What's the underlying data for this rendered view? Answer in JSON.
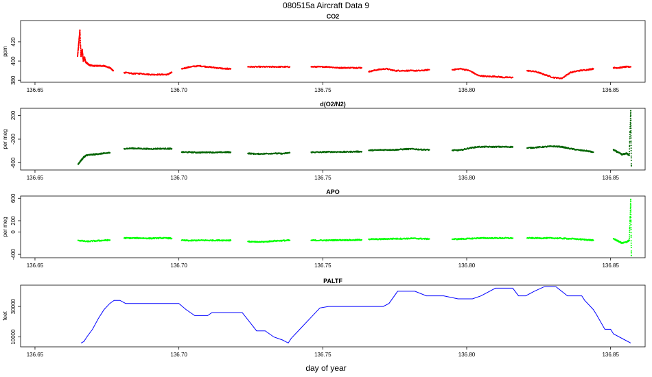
{
  "figure": {
    "title": "080515a    Aircraft Data 9",
    "xlabel": "day of year"
  },
  "chart_data": [
    {
      "type": "scatter",
      "title": "CO2",
      "ylabel": "ppm",
      "color": "#ff0000",
      "xlim": [
        136.645,
        136.862
      ],
      "ylim": [
        378,
        442
      ],
      "xticks": [
        136.65,
        136.7,
        136.75,
        136.8,
        136.85
      ],
      "xtick_labels": [
        "136.65",
        "136.70",
        "136.75",
        "136.80",
        "136.85"
      ],
      "yticks": [
        380,
        400,
        420
      ],
      "ytick_labels": [
        "380",
        "400",
        "420"
      ],
      "series": [
        {
          "segments": [
            {
              "x": [
                136.6648,
                136.6652,
                136.6656,
                136.666,
                136.6664,
                136.6668,
                136.6672,
                136.6676,
                136.668,
                136.6684,
                136.6688,
                136.67,
                136.672,
                136.674,
                136.676,
                136.6772
              ],
              "y": [
                405,
                418,
                432,
                405,
                412,
                400,
                404,
                399,
                398,
                397,
                396,
                395,
                395,
                395,
                393,
                390
              ]
            },
            {
              "x": [
                136.681,
                136.684,
                136.687,
                136.69,
                136.693,
                136.696,
                136.6975
              ],
              "y": [
                388,
                387,
                387,
                386,
                386,
                386,
                388
              ]
            },
            {
              "x": [
                136.701,
                136.704,
                136.707,
                136.71,
                136.713,
                136.716,
                136.718
              ],
              "y": [
                392,
                394,
                395,
                394,
                393,
                392,
                392
              ]
            },
            {
              "x": [
                136.724,
                136.727,
                136.73,
                136.733,
                136.736,
                136.7385
              ],
              "y": [
                394,
                394,
                394,
                394,
                394,
                394
              ]
            },
            {
              "x": [
                136.746,
                136.749,
                136.752,
                136.755,
                136.758,
                136.761,
                136.7635
              ],
              "y": [
                394,
                394,
                394,
                393,
                393,
                393,
                393
              ]
            },
            {
              "x": [
                136.766,
                136.769,
                136.772,
                136.775,
                136.778,
                136.781,
                136.784,
                136.787
              ],
              "y": [
                389,
                391,
                392,
                390,
                390,
                390,
                390,
                391
              ]
            },
            {
              "x": [
                136.795,
                136.798,
                136.801,
                136.804,
                136.807,
                136.81,
                136.813,
                136.816
              ],
              "y": [
                391,
                392,
                390,
                385,
                384,
                384,
                383,
                383
              ]
            },
            {
              "x": [
                136.821,
                136.824,
                136.827,
                136.83,
                136.833,
                136.836,
                136.839,
                136.842,
                136.844
              ],
              "y": [
                390,
                389,
                386,
                383,
                382,
                388,
                390,
                391,
                392
              ]
            },
            {
              "x": [
                136.851,
                136.853,
                136.855,
                136.857
              ],
              "y": [
                393,
                393,
                394,
                394
              ]
            }
          ]
        }
      ]
    },
    {
      "type": "scatter",
      "title": "d(O2/N2)",
      "ylabel": "per meg",
      "color": "#006400",
      "xlim": [
        136.645,
        136.862
      ],
      "ylim": [
        -720,
        320
      ],
      "xticks": [
        136.65,
        136.7,
        136.75,
        136.8,
        136.85
      ],
      "xtick_labels": [
        "136.65",
        "136.70",
        "136.75",
        "136.80",
        "136.85"
      ],
      "yticks": [
        -600,
        -200,
        200
      ],
      "ytick_labels": [
        "-600",
        "-200",
        "200"
      ],
      "series": [
        {
          "segments": [
            {
              "x": [
                136.665,
                136.666,
                136.667,
                136.668,
                136.67,
                136.672,
                136.674,
                136.676
              ],
              "y": [
                -620,
                -560,
                -500,
                -470,
                -460,
                -450,
                -440,
                -430
              ]
            },
            {
              "x": [
                136.681,
                136.684,
                136.687,
                136.69,
                136.693,
                136.696,
                136.6975
              ],
              "y": [
                -360,
                -355,
                -360,
                -365,
                -360,
                -360,
                -362
              ]
            },
            {
              "x": [
                136.701,
                136.704,
                136.707,
                136.71,
                136.713,
                136.716,
                136.718
              ],
              "y": [
                -420,
                -420,
                -425,
                -420,
                -425,
                -420,
                -420
              ]
            },
            {
              "x": [
                136.724,
                136.727,
                136.73,
                136.733,
                136.736,
                136.7385
              ],
              "y": [
                -440,
                -450,
                -445,
                -440,
                -445,
                -430
              ]
            },
            {
              "x": [
                136.746,
                136.749,
                136.752,
                136.755,
                136.758,
                136.761,
                136.7635
              ],
              "y": [
                -420,
                -420,
                -415,
                -415,
                -415,
                -410,
                -410
              ]
            },
            {
              "x": [
                136.766,
                136.769,
                136.772,
                136.775,
                136.778,
                136.781,
                136.784,
                136.787
              ],
              "y": [
                -390,
                -385,
                -380,
                -380,
                -370,
                -365,
                -375,
                -380
              ]
            },
            {
              "x": [
                136.795,
                136.798,
                136.801,
                136.804,
                136.807,
                136.81,
                136.813,
                136.816
              ],
              "y": [
                -390,
                -385,
                -350,
                -330,
                -330,
                -330,
                -330,
                -330
              ]
            },
            {
              "x": [
                136.821,
                136.824,
                136.827,
                136.83,
                136.833,
                136.836,
                136.839,
                136.842,
                136.844
              ],
              "y": [
                -350,
                -340,
                -330,
                -320,
                -330,
                -360,
                -385,
                -400,
                -420
              ]
            },
            {
              "x": [
                136.851,
                136.8525,
                136.854,
                136.8555,
                136.8565,
                136.857,
                136.8572
              ],
              "y": [
                -380,
                -420,
                -460,
                -440,
                -470,
                280,
                -650
              ]
            }
          ]
        }
      ]
    },
    {
      "type": "scatter",
      "title": "APO",
      "ylabel": "per meg",
      "color": "#00ff00",
      "xlim": [
        136.645,
        136.862
      ],
      "ylim": [
        -460,
        640
      ],
      "xticks": [
        136.65,
        136.7,
        136.75,
        136.8,
        136.85
      ],
      "xtick_labels": [
        "136.65",
        "136.70",
        "136.75",
        "136.80",
        "136.85"
      ],
      "yticks": [
        -400,
        0,
        200,
        600
      ],
      "ytick_labels": [
        "-400",
        "0",
        "200",
        "600"
      ],
      "series": [
        {
          "segments": [
            {
              "x": [
                136.665,
                136.668,
                136.671,
                136.674,
                136.676
              ],
              "y": [
                -150,
                -170,
                -160,
                -150,
                -145
              ]
            },
            {
              "x": [
                136.681,
                136.684,
                136.687,
                136.69,
                136.693,
                136.696,
                136.6975
              ],
              "y": [
                -110,
                -110,
                -110,
                -115,
                -110,
                -110,
                -115
              ]
            },
            {
              "x": [
                136.701,
                136.704,
                136.707,
                136.71,
                136.713,
                136.716,
                136.718
              ],
              "y": [
                -150,
                -155,
                -150,
                -150,
                -150,
                -150,
                -150
              ]
            },
            {
              "x": [
                136.724,
                136.727,
                136.73,
                136.733,
                136.736,
                136.7385
              ],
              "y": [
                -170,
                -180,
                -175,
                -160,
                -155,
                -150
              ]
            },
            {
              "x": [
                136.746,
                136.749,
                136.752,
                136.755,
                136.758,
                136.761,
                136.7635
              ],
              "y": [
                -150,
                -150,
                -150,
                -145,
                -145,
                -145,
                -140
              ]
            },
            {
              "x": [
                136.766,
                136.769,
                136.772,
                136.775,
                136.778,
                136.781,
                136.784,
                136.787
              ],
              "y": [
                -130,
                -130,
                -125,
                -120,
                -120,
                -115,
                -120,
                -125
              ]
            },
            {
              "x": [
                136.795,
                136.798,
                136.801,
                136.804,
                136.807,
                136.81,
                136.813,
                136.816
              ],
              "y": [
                -130,
                -125,
                -120,
                -110,
                -110,
                -110,
                -110,
                -110
              ]
            },
            {
              "x": [
                136.821,
                136.824,
                136.827,
                136.83,
                136.833,
                136.836,
                136.839,
                136.842,
                136.844
              ],
              "y": [
                -110,
                -110,
                -110,
                -110,
                -115,
                -120,
                -130,
                -140,
                -150
              ]
            },
            {
              "x": [
                136.851,
                136.8525,
                136.854,
                136.8555,
                136.8565,
                136.857,
                136.8572
              ],
              "y": [
                -120,
                -160,
                -200,
                -180,
                -150,
                580,
                -420
              ]
            }
          ]
        }
      ]
    },
    {
      "type": "line",
      "title": "PALTF",
      "ylabel": "feet",
      "color": "#0000ff",
      "xlim": [
        136.645,
        136.862
      ],
      "ylim": [
        3500,
        44000
      ],
      "xticks": [
        136.65,
        136.7,
        136.75,
        136.8,
        136.85
      ],
      "xtick_labels": [
        "136.65",
        "136.70",
        "136.75",
        "136.80",
        "136.85"
      ],
      "yticks": [
        10000,
        30000
      ],
      "ytick_labels": [
        "10000",
        "30000"
      ],
      "series": [
        {
          "x": [
            136.666,
            136.667,
            136.668,
            136.67,
            136.672,
            136.674,
            136.676,
            136.6775,
            136.6795,
            136.6815,
            136.685,
            136.7,
            136.7025,
            136.7055,
            136.71,
            136.7115,
            136.714,
            136.717,
            136.722,
            136.7245,
            136.727,
            136.73,
            136.733,
            136.736,
            136.738,
            136.739,
            136.742,
            136.746,
            136.749,
            136.752,
            136.76,
            136.768,
            136.771,
            136.773,
            136.776,
            136.782,
            136.786,
            136.792,
            136.797,
            136.802,
            136.805,
            136.81,
            136.816,
            136.818,
            136.8205,
            136.8235,
            136.827,
            136.831,
            136.835,
            136.84,
            136.841,
            136.844,
            136.845,
            136.848,
            136.85,
            136.851,
            136.855,
            136.857
          ],
          "y": [
            6000,
            7000,
            10000,
            15000,
            22000,
            28000,
            32000,
            34000,
            34000,
            32000,
            32000,
            32000,
            28000,
            24000,
            24000,
            26000,
            26000,
            26000,
            26000,
            20000,
            14000,
            14000,
            10000,
            8000,
            6000,
            9000,
            15000,
            23000,
            29000,
            30000,
            30000,
            30000,
            30000,
            32000,
            40000,
            40000,
            37000,
            37000,
            35000,
            35000,
            37000,
            42000,
            42000,
            37000,
            37000,
            40000,
            43000,
            43000,
            37000,
            37000,
            34000,
            28000,
            25000,
            15000,
            15000,
            12000,
            8000,
            6000
          ]
        }
      ]
    }
  ]
}
